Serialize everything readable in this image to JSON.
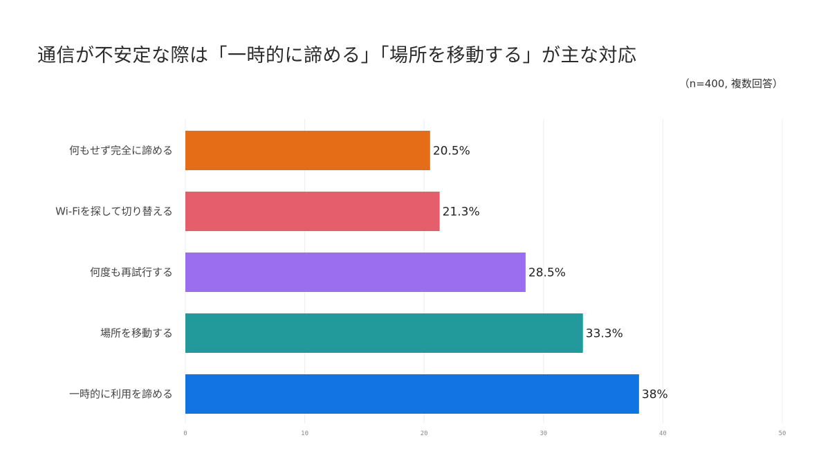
{
  "title": "通信が不安定な際は「一時的に諦める」「場所を移動する」が主な対応",
  "subtitle": "（n=400, 複数回答）",
  "chart_data": {
    "type": "bar",
    "orientation": "horizontal",
    "categories": [
      "何もせず完全に諦める",
      "Wi-Fiを探して切り替える",
      "何度も再試行する",
      "場所を移動する",
      "一時的に利用を諦める"
    ],
    "values": [
      20.5,
      21.3,
      28.5,
      33.3,
      38
    ],
    "value_labels": [
      "20.5%",
      "21.3%",
      "28.5%",
      "33.3%",
      "38%"
    ],
    "colors": [
      "#e56d17",
      "#e55e6c",
      "#9b6ef0",
      "#22999a",
      "#1274e2"
    ],
    "xlim": [
      0,
      50
    ],
    "xticks": [
      "0",
      "10",
      "20",
      "30",
      "40",
      "50"
    ],
    "grid": true,
    "legend": "none"
  }
}
